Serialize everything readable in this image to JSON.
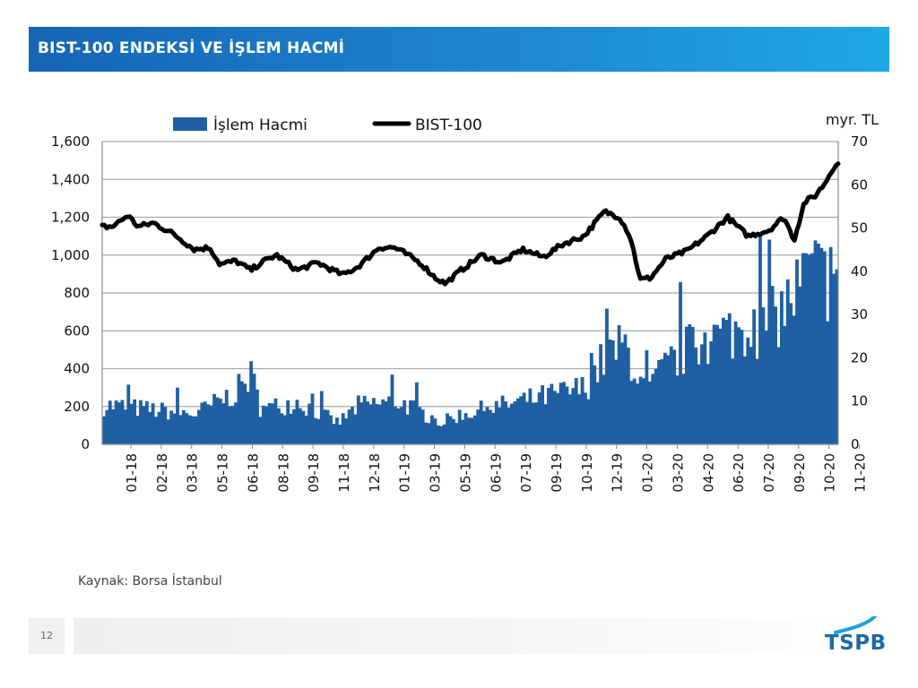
{
  "slide": {
    "title": "BIST-100 ENDEKSİ VE İŞLEM HACMİ",
    "source": "Kaynak: Borsa İstanbul",
    "page_number": "12",
    "logo_text": "TSPB"
  },
  "colors": {
    "title_bar": "#1a75c4",
    "bars": "#1f5fa3",
    "line": "#000000",
    "logo": "#1b6aa5"
  },
  "chart_data": {
    "type": "bar+line",
    "right_axis_unit": "myr. TL",
    "left_axis": {
      "min": 0,
      "max": 1600,
      "ticks": [
        "0",
        "200",
        "400",
        "600",
        "800",
        "1,000",
        "1,200",
        "1,400",
        "1,600"
      ]
    },
    "right_axis": {
      "min": 0,
      "max": 70,
      "ticks": [
        "0",
        "10",
        "20",
        "30",
        "40",
        "50",
        "60",
        "70"
      ]
    },
    "x_tick_labels": [
      "01-18",
      "02-18",
      "03-18",
      "05-18",
      "06-18",
      "08-18",
      "09-18",
      "11-18",
      "12-18",
      "01-19",
      "03-19",
      "05-19",
      "06-19",
      "07-19",
      "09-19",
      "10-19",
      "12-19",
      "01-20",
      "03-20",
      "04-20",
      "06-20",
      "07-20",
      "09-20",
      "10-20",
      "11-20"
    ],
    "grid": "horizontal",
    "legend_position": "top",
    "series": [
      {
        "name": "BIST-100",
        "type": "line",
        "axis": "left",
        "anchors": [
          [
            "01-18",
            1150
          ],
          [
            "02-18",
            1210
          ],
          [
            "02-18",
            1150
          ],
          [
            "03-18",
            1170
          ],
          [
            "04-18",
            1110
          ],
          [
            "05-18",
            1030
          ],
          [
            "06-18",
            1040
          ],
          [
            "06-18",
            950
          ],
          [
            "07-18",
            970
          ],
          [
            "08-18",
            920
          ],
          [
            "08-18",
            960
          ],
          [
            "09-18",
            1000
          ],
          [
            "10-18",
            920
          ],
          [
            "11-18",
            960
          ],
          [
            "12-18",
            920
          ],
          [
            "12-18",
            895
          ],
          [
            "01-19",
            940
          ],
          [
            "02-19",
            1040
          ],
          [
            "03-19",
            1040
          ],
          [
            "03-19",
            1010
          ],
          [
            "04-19",
            960
          ],
          [
            "05-19",
            880
          ],
          [
            "05-19",
            850
          ],
          [
            "06-19",
            920
          ],
          [
            "07-19",
            1000
          ],
          [
            "08-19",
            960
          ],
          [
            "09-19",
            1030
          ],
          [
            "10-19",
            990
          ],
          [
            "11-19",
            1060
          ],
          [
            "12-19",
            1100
          ],
          [
            "01-20",
            1230
          ],
          [
            "02-20",
            1200
          ],
          [
            "02-20",
            1100
          ],
          [
            "03-20",
            870
          ],
          [
            "03-20",
            880
          ],
          [
            "04-20",
            980
          ],
          [
            "05-20",
            1020
          ],
          [
            "06-20",
            1100
          ],
          [
            "07-20",
            1200
          ],
          [
            "08-20",
            1100
          ],
          [
            "09-20",
            1130
          ],
          [
            "10-20",
            1200
          ],
          [
            "10-20",
            1080
          ],
          [
            "11-20",
            1280
          ],
          [
            "11-20",
            1310
          ],
          [
            "12-20",
            1380
          ],
          [
            "12-20",
            1480
          ]
        ]
      },
      {
        "name": "İşlem Hacmi",
        "type": "bar",
        "axis": "right",
        "unit": "myr. TL",
        "anchors": [
          [
            "01-18",
            9
          ],
          [
            "05-18",
            7
          ],
          [
            "07-18",
            12
          ],
          [
            "08-18",
            16
          ],
          [
            "08-18",
            8
          ],
          [
            "10-18",
            10
          ],
          [
            "12-18",
            5
          ],
          [
            "01-19",
            9
          ],
          [
            "03-19",
            10
          ],
          [
            "05-19",
            5
          ],
          [
            "06-19",
            7
          ],
          [
            "09-19",
            10
          ],
          [
            "12-19",
            13
          ],
          [
            "01-20",
            20
          ],
          [
            "02-20",
            23
          ],
          [
            "03-20",
            12
          ],
          [
            "04-20",
            18
          ],
          [
            "05-20",
            22
          ],
          [
            "07-20",
            26
          ],
          [
            "09-20",
            28
          ],
          [
            "10-20",
            33
          ],
          [
            "11-20",
            40
          ],
          [
            "12-20",
            38
          ]
        ]
      }
    ]
  }
}
